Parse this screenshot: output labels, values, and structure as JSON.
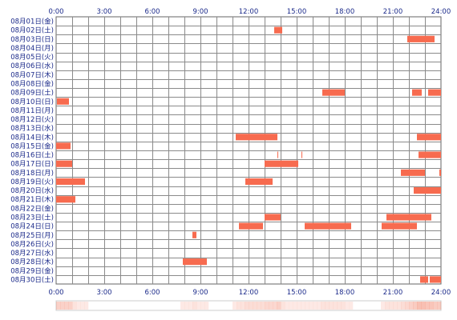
{
  "chart_data": {
    "type": "timeline",
    "x_unit": "hour",
    "xlim": [
      0,
      24
    ],
    "x_ticks": [
      "0:00",
      "3:00",
      "6:00",
      "9:00",
      "12:00",
      "15:00",
      "18:00",
      "21:00",
      "24:00"
    ],
    "rows": [
      "08月01日(金)",
      "08月02日(土)",
      "08月03日(日)",
      "08月04日(月)",
      "08月05日(火)",
      "08月06日(水)",
      "08月07日(木)",
      "08月08日(金)",
      "08月09日(土)",
      "08月10日(日)",
      "08月11日(月)",
      "08月12日(火)",
      "08月13日(水)",
      "08月14日(木)",
      "08月15日(金)",
      "08月16日(土)",
      "08月17日(日)",
      "08月18日(月)",
      "08月19日(火)",
      "08月20日(水)",
      "08月21日(木)",
      "08月22日(金)",
      "08月23日(土)",
      "08月24日(日)",
      "08月25日(月)",
      "08月26日(火)",
      "08月27日(水)",
      "08月28日(木)",
      "08月29日(金)",
      "08月30日(土)"
    ],
    "bar_color": "#f76b4f",
    "intervals": [
      {
        "row": 1,
        "start": 13.6,
        "end": 14.1
      },
      {
        "row": 2,
        "start": 21.9,
        "end": 23.6
      },
      {
        "row": 8,
        "start": 16.6,
        "end": 18.0
      },
      {
        "row": 8,
        "start": 22.2,
        "end": 22.8
      },
      {
        "row": 8,
        "start": 23.2,
        "end": 24.0
      },
      {
        "row": 9,
        "start": 0.05,
        "end": 0.8
      },
      {
        "row": 13,
        "start": 11.2,
        "end": 13.8
      },
      {
        "row": 13,
        "start": 22.5,
        "end": 24.0
      },
      {
        "row": 14,
        "start": 0.0,
        "end": 0.9
      },
      {
        "row": 15,
        "start": 13.8,
        "end": 13.85
      },
      {
        "row": 15,
        "start": 15.3,
        "end": 15.35
      },
      {
        "row": 15,
        "start": 22.6,
        "end": 24.0
      },
      {
        "row": 16,
        "start": 0.0,
        "end": 1.0
      },
      {
        "row": 16,
        "start": 13.0,
        "end": 15.1
      },
      {
        "row": 17,
        "start": 21.5,
        "end": 23.0
      },
      {
        "row": 17,
        "start": 23.9,
        "end": 24.0
      },
      {
        "row": 18,
        "start": 0.0,
        "end": 1.8
      },
      {
        "row": 18,
        "start": 11.8,
        "end": 13.5
      },
      {
        "row": 19,
        "start": 22.3,
        "end": 24.0
      },
      {
        "row": 20,
        "start": 0.0,
        "end": 1.2
      },
      {
        "row": 22,
        "start": 13.0,
        "end": 14.0
      },
      {
        "row": 22,
        "start": 20.6,
        "end": 23.4
      },
      {
        "row": 23,
        "start": 11.4,
        "end": 12.9
      },
      {
        "row": 23,
        "start": 15.5,
        "end": 18.4
      },
      {
        "row": 23,
        "start": 20.3,
        "end": 22.5
      },
      {
        "row": 24,
        "start": 8.5,
        "end": 8.75
      },
      {
        "row": 27,
        "start": 7.9,
        "end": 9.4
      },
      {
        "row": 29,
        "start": 22.7,
        "end": 23.2
      },
      {
        "row": 29,
        "start": 23.3,
        "end": 24.0
      }
    ],
    "density_strip": true,
    "grid": true
  }
}
